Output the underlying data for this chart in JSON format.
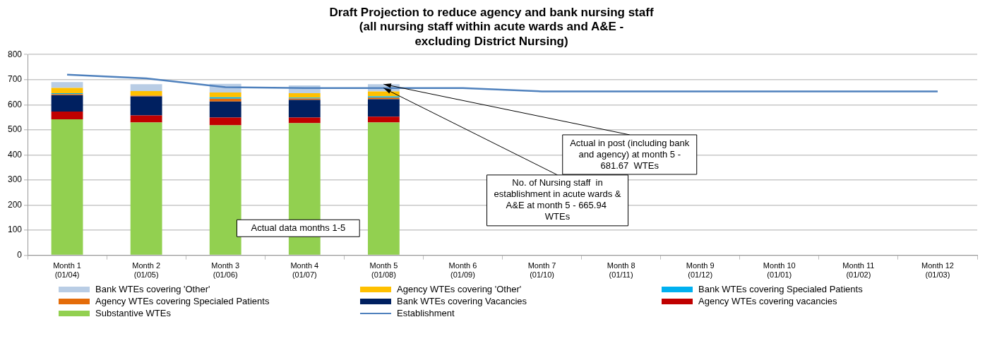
{
  "chart_data": {
    "type": "bar",
    "title": "Draft Projection to reduce agency and bank nursing staff\n(all nursing staff within acute wards and A&E -\nexcluding District Nursing)",
    "categories": [
      "Month 1 (01/04)",
      "Month 2 (01/05)",
      "Month 3 (01/06)",
      "Month 4 (01/07)",
      "Month 5 (01/08)",
      "Month 6 (01/09)",
      "Month 7 (01/10)",
      "Month 8 (01/11)",
      "Month 9 (01/12)",
      "Month 10 (01/01)",
      "Month 11 (01/02)",
      "Month 12 (01/03)"
    ],
    "stacked": true,
    "series": [
      {
        "name": "Substantive WTEs",
        "color": "#92d050",
        "values": [
          542,
          529,
          518,
          526,
          529,
          null,
          null,
          null,
          null,
          null,
          null,
          null
        ]
      },
      {
        "name": "Agency WTEs covering vacancies",
        "color": "#c00000",
        "values": [
          31,
          28,
          31,
          23,
          23,
          null,
          null,
          null,
          null,
          null,
          null,
          null
        ]
      },
      {
        "name": "Bank WTEs covering Vacancies",
        "color": "#002060",
        "values": [
          65,
          76,
          64,
          70,
          70,
          null,
          null,
          null,
          null,
          null,
          null,
          null
        ]
      },
      {
        "name": "Agency WTEs covering Specialed Patients",
        "color": "#e46c0a",
        "values": [
          4,
          3,
          11,
          6,
          6,
          null,
          null,
          null,
          null,
          null,
          null,
          null
        ]
      },
      {
        "name": "Bank WTEs covering Specialed Patients",
        "color": "#00b0f0",
        "values": [
          4,
          null,
          6,
          3,
          5,
          null,
          null,
          null,
          null,
          null,
          null,
          null
        ]
      },
      {
        "name": "Agency WTEs covering 'Other'",
        "color": "#ffc000",
        "values": [
          21,
          18,
          19,
          18,
          20,
          null,
          null,
          null,
          null,
          null,
          null,
          null
        ]
      },
      {
        "name": "Bank WTEs covering 'Other'",
        "color": "#b9cde5",
        "values": [
          23,
          28,
          34,
          31,
          29,
          null,
          null,
          null,
          null,
          null,
          null,
          null
        ]
      },
      {
        "name": "Establishment",
        "type": "line",
        "color": "#4f81bd",
        "values": [
          720,
          705,
          670,
          666,
          666,
          666,
          653,
          653,
          653,
          653,
          653,
          653
        ]
      }
    ],
    "ylim": [
      0,
      800
    ],
    "yticks": [
      0,
      100,
      200,
      300,
      400,
      500,
      600,
      700,
      800
    ],
    "grid": "y",
    "legend": "bottom",
    "marker": "none",
    "annotations": [
      "Actual data months 1-5",
      {
        "text": "No. of Nursing staff  in establishment in acute wards & A&E at month 5 - 665.94  WTEs",
        "x": "Month 5 (01/08)",
        "y": 665.94
      },
      {
        "text": "Actual in post (including bank and agency) at month 5 - 681.67  WTEs",
        "x": "Month 5 (01/08)",
        "y": 681.67
      }
    ]
  }
}
